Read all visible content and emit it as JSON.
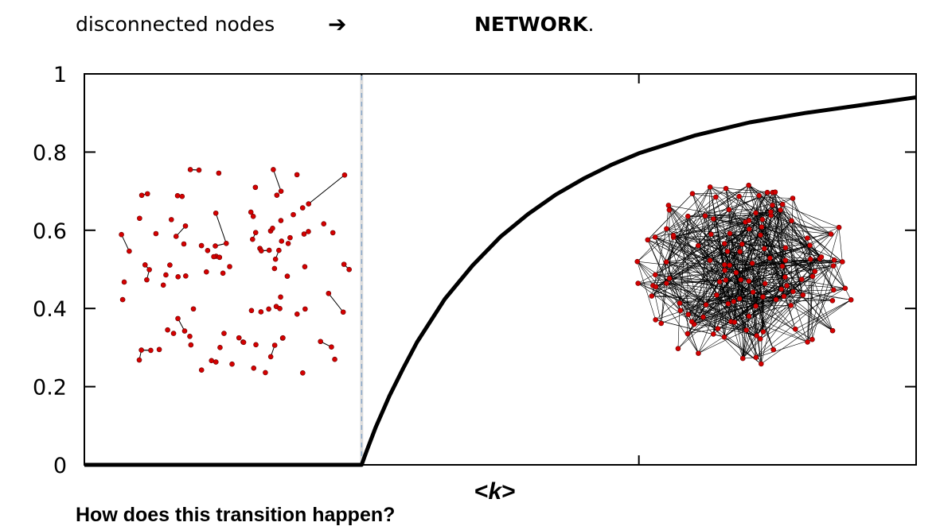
{
  "header": {
    "left_text": "disconnected nodes",
    "arrow": "➔",
    "right_bold": "NETWORK",
    "right_suffix": "."
  },
  "question": "How does this transition happen?",
  "chart_data": {
    "type": "line",
    "title": "",
    "xlabel_prefix": "<",
    "xlabel_var": "k",
    "xlabel_suffix": ">",
    "ylabel": "",
    "ylim": [
      0,
      1
    ],
    "xlim": [
      0,
      3
    ],
    "yticks": [
      0,
      0.2,
      0.4,
      0.6,
      0.8,
      1
    ],
    "ytick_labels": [
      "0",
      "0.2",
      "0.4",
      "0.6",
      "0.8",
      "1"
    ],
    "xticks": [
      1,
      2
    ],
    "grid": false,
    "legend": "none",
    "critical_point": 1,
    "series": [
      {
        "x": [
          0,
          0.5,
          1.0,
          1.02,
          1.05,
          1.1,
          1.15,
          1.2,
          1.3,
          1.4,
          1.5,
          1.6,
          1.7,
          1.8,
          1.9,
          2.0,
          2.2,
          2.4,
          2.6,
          2.8,
          3.0
        ],
        "y": [
          0,
          0,
          0,
          0.039,
          0.095,
          0.176,
          0.247,
          0.314,
          0.424,
          0.51,
          0.583,
          0.641,
          0.691,
          0.732,
          0.767,
          0.797,
          0.842,
          0.876,
          0.9,
          0.92,
          0.94
        ]
      }
    ],
    "colors": {
      "curve": "#000000",
      "critical_line": "#8aa8c8",
      "node": "#d40000",
      "edge": "#000000"
    }
  }
}
